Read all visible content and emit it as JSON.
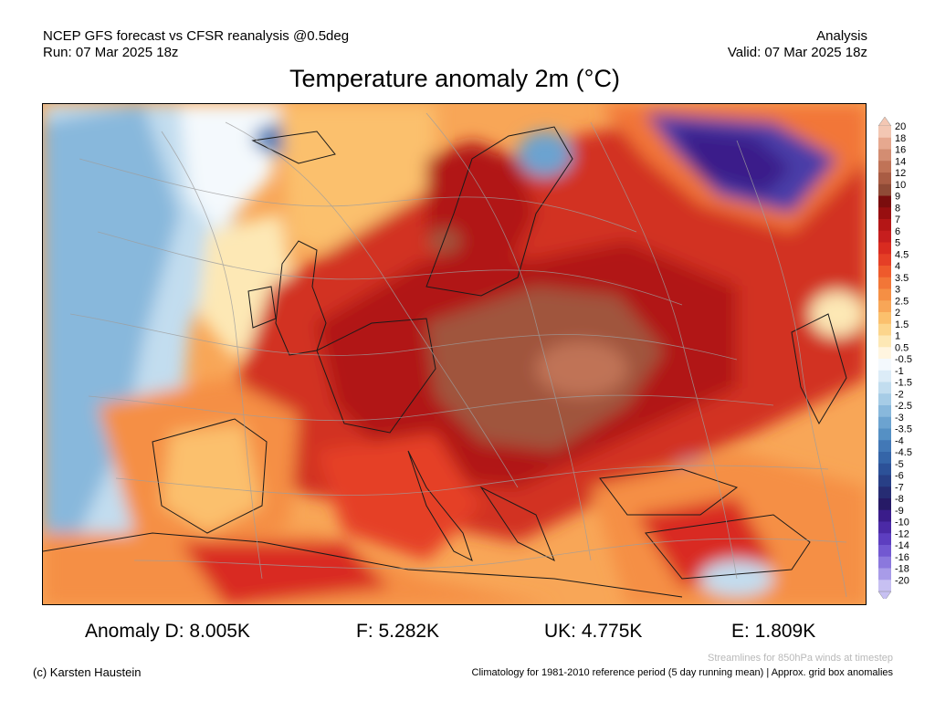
{
  "header": {
    "left_line1": "NCEP GFS forecast vs CFSR reanalysis @0.5deg",
    "left_line2": "Run: 07 Mar 2025 18z",
    "right_line1": "Analysis",
    "right_line2": "Valid: 07 Mar 2025 18z"
  },
  "title": "Temperature anomaly 2m (°C)",
  "colorbar": {
    "labels": [
      "20",
      "18",
      "16",
      "14",
      "12",
      "10",
      "9",
      "8",
      "7",
      "6",
      "5",
      "4.5",
      "4",
      "3.5",
      "3",
      "2.5",
      "2",
      "1.5",
      "1",
      "0.5",
      "-0.5",
      "-1",
      "-1.5",
      "-2",
      "-2.5",
      "-3",
      "-3.5",
      "-4",
      "-4.5",
      "-5",
      "-6",
      "-7",
      "-8",
      "-9",
      "-10",
      "-12",
      "-14",
      "-16",
      "-18",
      "-20"
    ],
    "colors": [
      "#f3c7b3",
      "#e6a88f",
      "#d38d72",
      "#c07357",
      "#a95c44",
      "#8f4a36",
      "#7a0d0d",
      "#980f10",
      "#b41616",
      "#c61e1e",
      "#d92b20",
      "#e53f26",
      "#ee5a2c",
      "#f27637",
      "#f58f44",
      "#f8a657",
      "#fbc06d",
      "#fcd58c",
      "#fde8b5",
      "#fff5e0",
      "#f4f9fd",
      "#dcecf7",
      "#c2ddef",
      "#a6cce6",
      "#88b8dc",
      "#6ca3d0",
      "#5590c4",
      "#4278b6",
      "#3565a8",
      "#2c5198",
      "#283f86",
      "#262c73",
      "#261a66",
      "#3a1c8a",
      "#4b2aa6",
      "#5d3ec0",
      "#7258d1",
      "#8b78dd",
      "#a89be8",
      "#c7c0f2"
    ]
  },
  "stats": {
    "d": "Anomaly D: 8.005K",
    "f": "F: 5.282K",
    "uk": "UK: 4.775K",
    "e": "E: 1.809K"
  },
  "footer": {
    "streamline_note": "Streamlines for 850hPa winds at timestep",
    "copyright": "(c) Karsten Haustein",
    "climatology": "Climatology for 1981-2010 reference period (5 day running mean) | Approx. grid box anomalies"
  },
  "map_colors": {
    "ocean_atlantic": "#fbc57e",
    "cold_atlantic": "#7fb4dc",
    "hot_core": "#a0543e",
    "red": "#d23222",
    "dark_red": "#b11817",
    "cold_russia": "#4a3ea8"
  }
}
